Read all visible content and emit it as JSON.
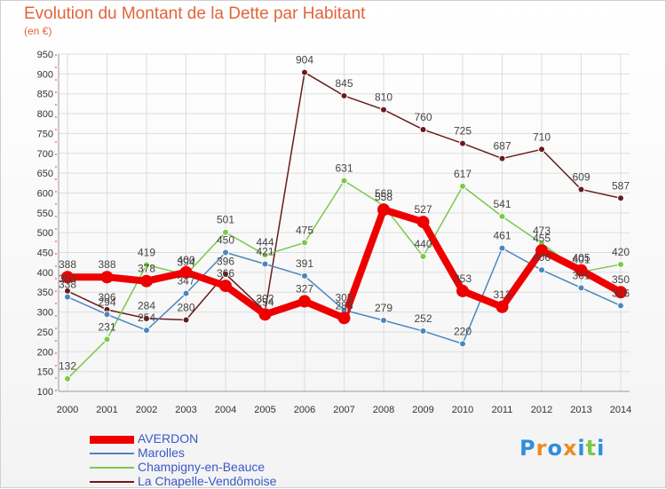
{
  "header": {
    "title": "Evolution du Montant de la Dette par Habitant",
    "subtitle": "(en €)"
  },
  "chart_data": {
    "type": "line",
    "title": "Evolution du Montant de la Dette par Habitant",
    "subtitle": "(en €)",
    "x": [
      "2000",
      "2001",
      "2002",
      "2003",
      "2004",
      "2005",
      "2006",
      "2007",
      "2008",
      "2009",
      "2010",
      "2011",
      "2012",
      "2013",
      "2014"
    ],
    "ylim": [
      100,
      950
    ],
    "yticks": [
      100,
      150,
      200,
      250,
      300,
      350,
      400,
      450,
      500,
      550,
      600,
      650,
      700,
      750,
      800,
      850,
      900,
      950
    ],
    "grid": true,
    "legend_position": "bottom-left",
    "series": [
      {
        "name": "AVERDON",
        "color": "#ee0000",
        "values": [
          388,
          388,
          378,
          400,
          366,
          294,
          327,
          285,
          558,
          527,
          353,
          313,
          455,
          405,
          350
        ]
      },
      {
        "name": "Marolles",
        "color": "#4a86c0",
        "values": [
          338,
          294,
          254,
          347,
          450,
          421,
          391,
          305,
          279,
          252,
          220,
          461,
          406,
          361,
          316
        ]
      },
      {
        "name": "Champigny-en-Beauce",
        "color": "#7cc84a",
        "values": [
          132,
          231,
          419,
          394,
          501,
          444,
          475,
          631,
          568,
          440,
          617,
          541,
          473,
          401,
          420
        ]
      },
      {
        "name": "La Chapelle-Vendômoise",
        "color": "#6b1a1a",
        "values": [
          353,
          306,
          284,
          280,
          396,
          302,
          904,
          845,
          810,
          760,
          725,
          687,
          710,
          609,
          587
        ]
      }
    ]
  },
  "logo": {
    "text": "Proxiti",
    "colors": [
      "#2f8fdd",
      "#f08a1e",
      "#2f8fdd",
      "#f08a1e",
      "#2f8fdd",
      "#7cc84a",
      "#2f8fdd"
    ]
  }
}
